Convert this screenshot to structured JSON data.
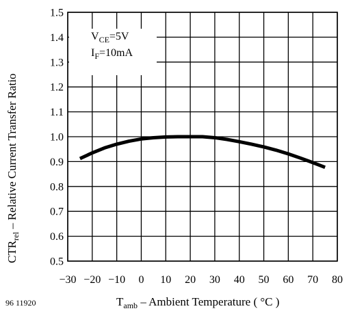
{
  "figure_id": "96 11920",
  "chart_data": {
    "type": "line",
    "xlabel": {
      "main": "T",
      "sub": "amb",
      "rest": " – Ambient Temperature ( °C )"
    },
    "ylabel": {
      "main": "CTR",
      "sub": "rel",
      "rest": "  – Relative Current Transfer Ratio"
    },
    "xlim": [
      -30,
      80
    ],
    "ylim": [
      0.5,
      1.5
    ],
    "x_ticks": [
      -30,
      -20,
      -10,
      0,
      10,
      20,
      30,
      40,
      50,
      60,
      70,
      80
    ],
    "x_tick_labels": [
      "−30",
      "−20",
      "−10",
      "0",
      "10",
      "20",
      "30",
      "40",
      "50",
      "60",
      "70",
      "80"
    ],
    "y_ticks": [
      0.5,
      0.6,
      0.7,
      0.8,
      0.9,
      1.0,
      1.1,
      1.2,
      1.3,
      1.4,
      1.5
    ],
    "y_tick_labels": [
      "0.5",
      "0.6",
      "0.7",
      "0.8",
      "0.9",
      "1.0",
      "1.1",
      "1.2",
      "1.3",
      "1.4",
      "1.5"
    ],
    "grid": true,
    "annotation": {
      "line1": {
        "main": "V",
        "sub": "CE",
        "rest": "=5V"
      },
      "line2": {
        "main": "I",
        "sub": "F",
        "rest": "=10mA"
      }
    },
    "series": [
      {
        "x": [
          -25,
          -20,
          -15,
          -10,
          -5,
          0,
          5,
          10,
          15,
          20,
          25,
          30,
          35,
          40,
          45,
          50,
          55,
          60,
          65,
          70,
          75
        ],
        "y": [
          0.912,
          0.935,
          0.955,
          0.97,
          0.982,
          0.991,
          0.996,
          0.999,
          1.0,
          1.0,
          1.0,
          0.996,
          0.989,
          0.98,
          0.97,
          0.959,
          0.946,
          0.931,
          0.914,
          0.896,
          0.877
        ]
      }
    ]
  }
}
